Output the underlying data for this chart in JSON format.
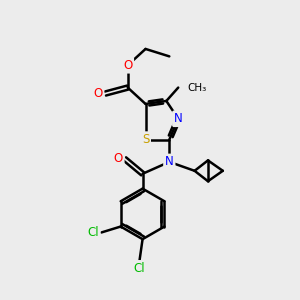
{
  "background_color": "#ececec",
  "bond_color": "#000000",
  "bond_width": 1.8,
  "atom_colors": {
    "S": "#c8a000",
    "N": "#0000ff",
    "O": "#ff0000",
    "Cl": "#00bb00",
    "C": "#000000"
  },
  "font_size": 8.5,
  "scale": 1.0
}
